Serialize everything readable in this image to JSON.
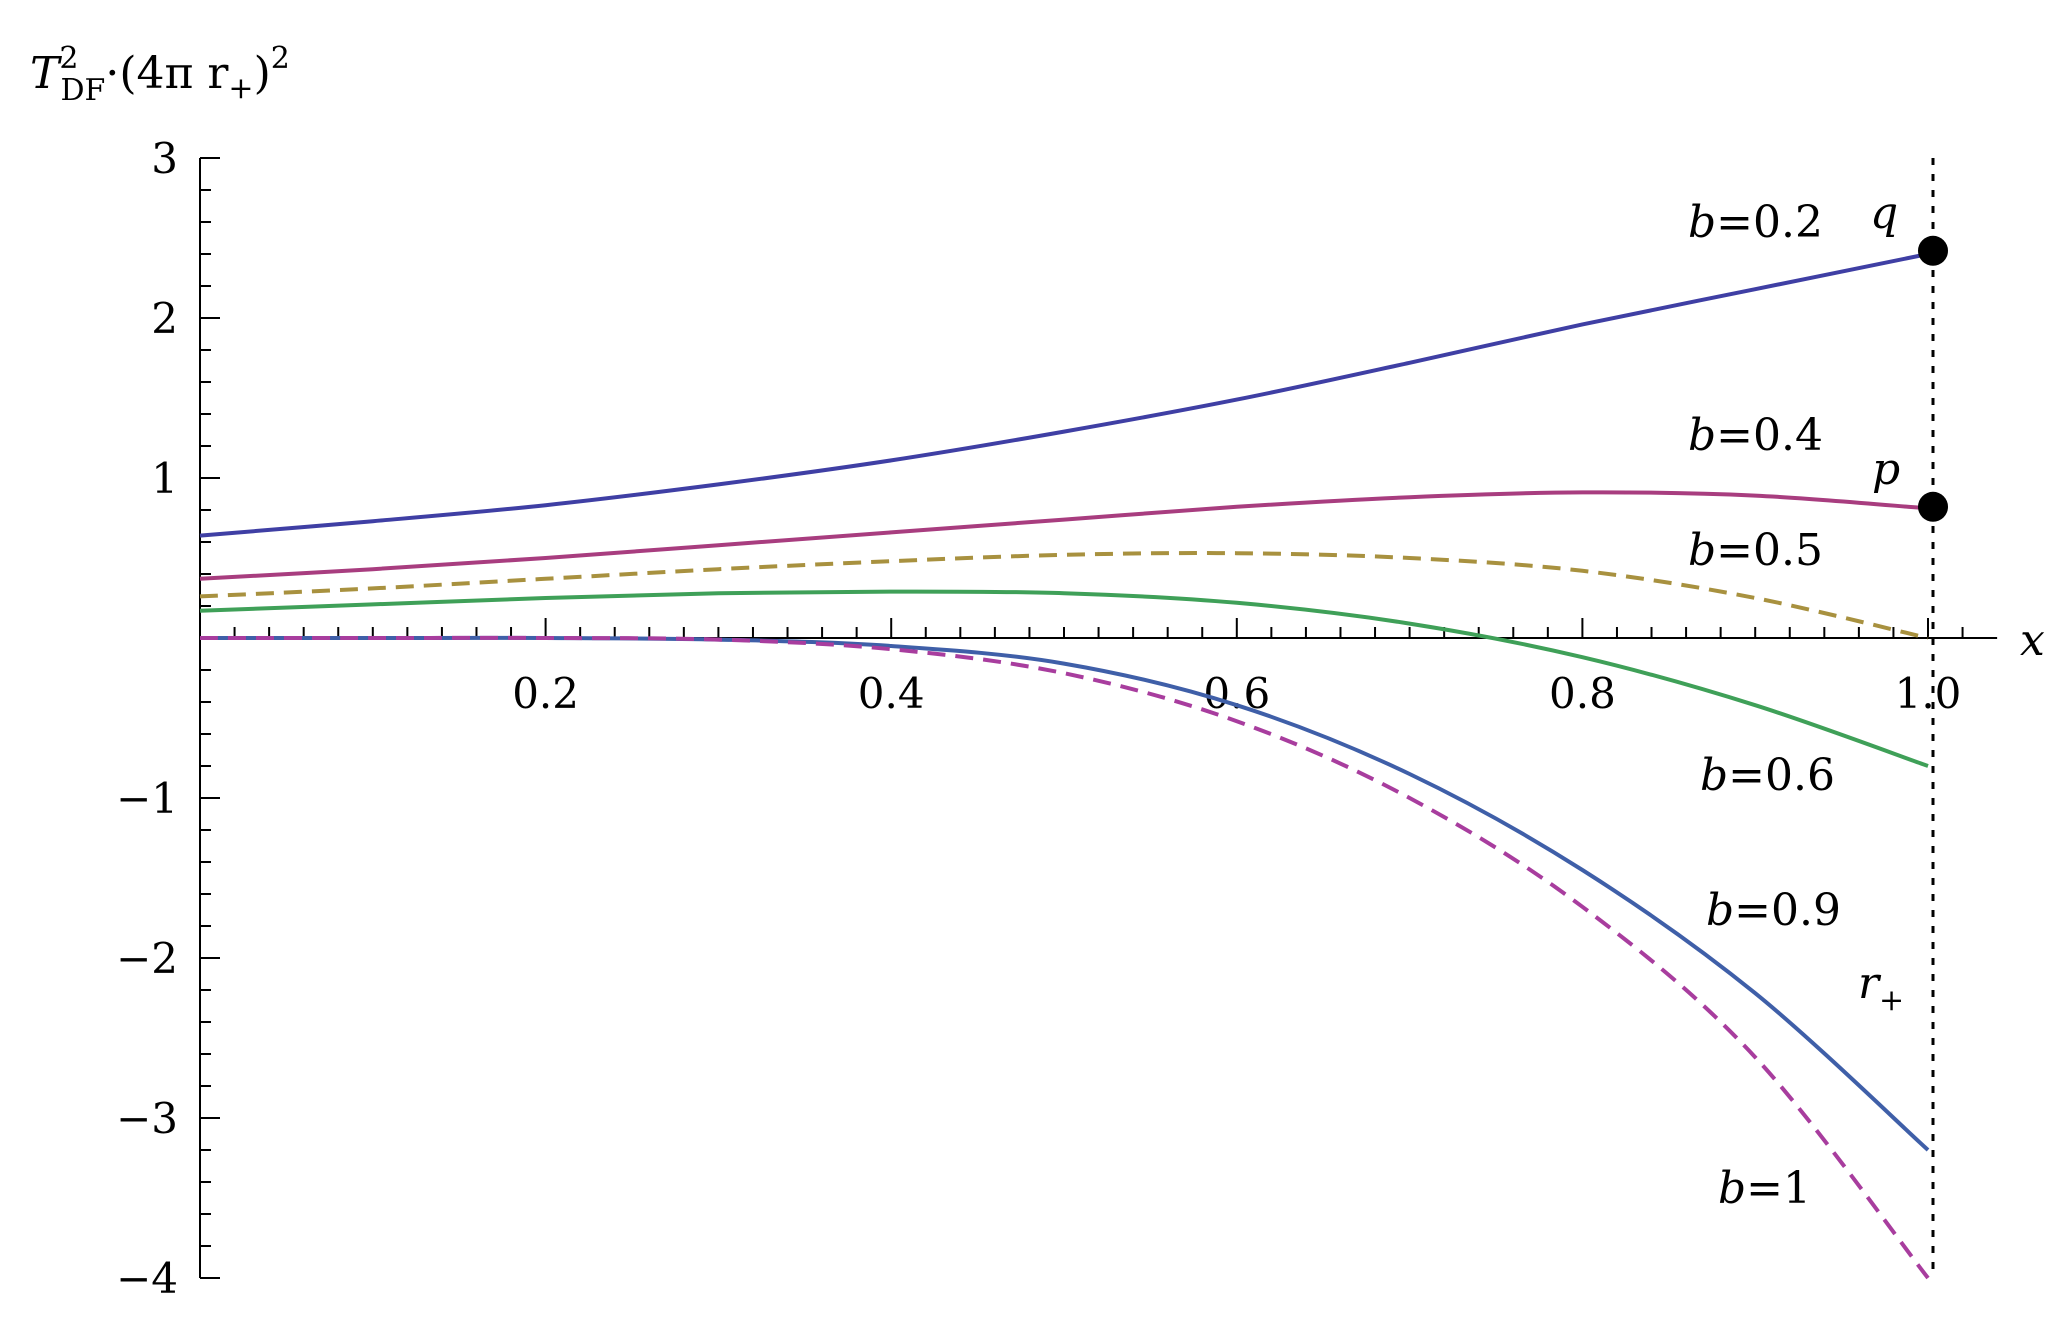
{
  "chart_data": {
    "type": "line",
    "title": "",
    "ylabel": {
      "base": "T",
      "sup": "2",
      "sub": "DF",
      "rest": "·(4π r",
      "rest_sub": "+",
      "close": ")",
      "close_sup": "2"
    },
    "xlabel": "x",
    "xlim": [
      0,
      1.04
    ],
    "ylim": [
      -4,
      3
    ],
    "x_ticks": [
      "0.2",
      "0.4",
      "0.6",
      "0.8",
      "1.0"
    ],
    "x_tick_values": [
      0.2,
      0.4,
      0.6,
      0.8,
      1.0
    ],
    "y_ticks": [
      "3",
      "2",
      "1",
      "−1",
      "−2",
      "−3",
      "−4"
    ],
    "y_tick_values": [
      3,
      2,
      1,
      -1,
      -2,
      -3,
      -4
    ],
    "vertical_line": {
      "x": 1.0,
      "label_base": "r",
      "label_sub": "+",
      "style": "dotted"
    },
    "points": [
      {
        "label": "q",
        "x": 1.0,
        "y": 2.42
      },
      {
        "label": "p",
        "x": 1.0,
        "y": 0.82
      }
    ],
    "series": [
      {
        "name": "b=0.2",
        "label_prefix": "b",
        "label_suffix": "=0.2",
        "color": "#3f3fa4",
        "dashed": false,
        "x": [
          0.0,
          0.1,
          0.2,
          0.3,
          0.4,
          0.5,
          0.6,
          0.7,
          0.8,
          0.9,
          1.0
        ],
        "y": [
          0.64,
          0.73,
          0.83,
          0.96,
          1.11,
          1.29,
          1.49,
          1.72,
          1.96,
          2.18,
          2.4
        ]
      },
      {
        "name": "b=0.4",
        "label_prefix": "b",
        "label_suffix": "=0.4",
        "color": "#a83d7f",
        "dashed": false,
        "x": [
          0.0,
          0.1,
          0.2,
          0.3,
          0.4,
          0.5,
          0.6,
          0.7,
          0.8,
          0.9,
          1.0
        ],
        "y": [
          0.37,
          0.43,
          0.5,
          0.58,
          0.66,
          0.74,
          0.82,
          0.88,
          0.91,
          0.89,
          0.81
        ]
      },
      {
        "name": "b=0.5",
        "label_prefix": "b",
        "label_suffix": "=0.5",
        "color": "#a8913f",
        "dashed": true,
        "x": [
          0.0,
          0.1,
          0.2,
          0.3,
          0.4,
          0.5,
          0.6,
          0.7,
          0.8,
          0.9,
          1.0
        ],
        "y": [
          0.26,
          0.31,
          0.37,
          0.43,
          0.48,
          0.52,
          0.53,
          0.5,
          0.42,
          0.25,
          0.0
        ]
      },
      {
        "name": "b=0.6",
        "label_prefix": "b",
        "label_suffix": "=0.6",
        "color": "#3fa058",
        "dashed": false,
        "x": [
          0.0,
          0.1,
          0.2,
          0.3,
          0.4,
          0.5,
          0.6,
          0.7,
          0.8,
          0.9,
          1.0
        ],
        "y": [
          0.17,
          0.21,
          0.25,
          0.28,
          0.29,
          0.28,
          0.22,
          0.09,
          -0.12,
          -0.42,
          -0.8
        ]
      },
      {
        "name": "b=0.9",
        "label_prefix": "b",
        "label_suffix": "=0.9",
        "color": "#3f5fa8",
        "dashed": false,
        "x": [
          0.0,
          0.1,
          0.2,
          0.3,
          0.4,
          0.5,
          0.6,
          0.7,
          0.8,
          0.9,
          1.0
        ],
        "y": [
          0.0,
          0.0,
          0.0,
          -0.01,
          -0.05,
          -0.16,
          -0.42,
          -0.85,
          -1.45,
          -2.22,
          -3.2
        ]
      },
      {
        "name": "b=1",
        "label_prefix": "b",
        "label_suffix": "=1",
        "color": "#a83d9e",
        "dashed": true,
        "x": [
          0.0,
          0.1,
          0.2,
          0.3,
          0.4,
          0.5,
          0.6,
          0.7,
          0.8,
          0.9,
          1.0
        ],
        "y": [
          0.0,
          0.0,
          0.0,
          -0.01,
          -0.07,
          -0.22,
          -0.52,
          -1.0,
          -1.68,
          -2.62,
          -4.0
        ]
      }
    ]
  }
}
